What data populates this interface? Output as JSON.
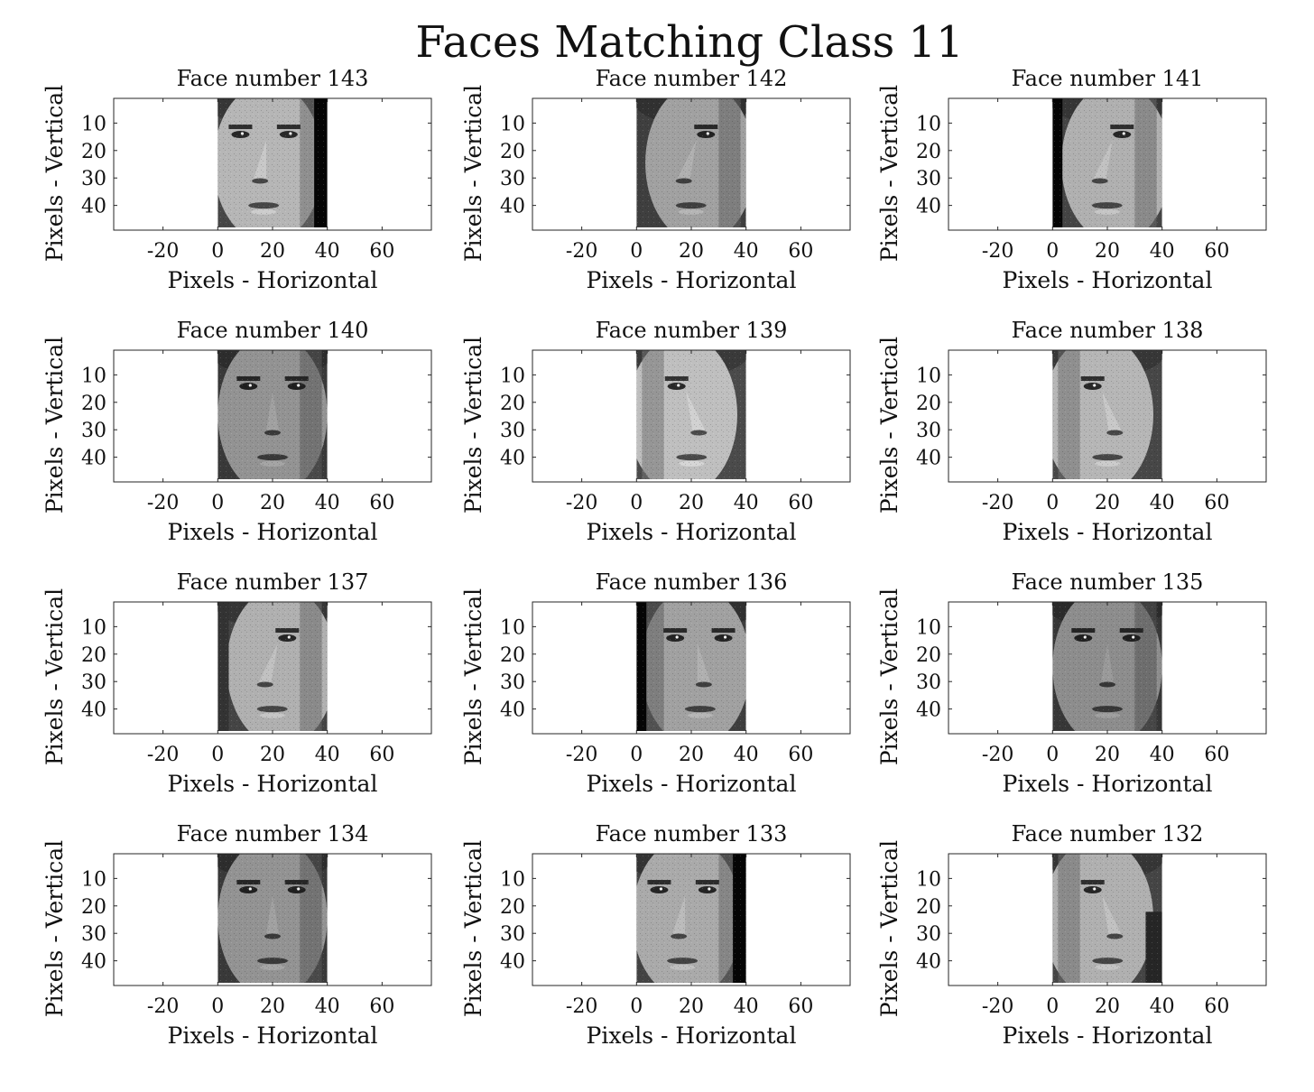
{
  "figure": {
    "title": "Faces Matching Class 11"
  },
  "chart_data": [
    {
      "type": "image",
      "title": "Face number 143",
      "xlabel": "Pixels - Horizontal",
      "ylabel": "Pixels - Vertical",
      "xlim": [
        -38,
        78
      ],
      "ylim": [
        49,
        1
      ],
      "xticks": [
        -20,
        0,
        20,
        40,
        60
      ],
      "yticks": [
        10,
        20,
        30,
        40
      ],
      "image_extent": [
        0,
        40,
        0,
        48
      ],
      "pose": "turned-left",
      "dark_band": "right",
      "face_tone": 0.62
    },
    {
      "type": "image",
      "title": "Face number 142",
      "xlabel": "Pixels - Horizontal",
      "ylabel": "Pixels - Vertical",
      "xlim": [
        -38,
        78
      ],
      "ylim": [
        49,
        1
      ],
      "xticks": [
        -20,
        0,
        20,
        40,
        60
      ],
      "yticks": [
        10,
        20,
        30,
        40
      ],
      "image_extent": [
        0,
        40,
        0,
        48
      ],
      "pose": "profile-left",
      "dark_band": "none",
      "face_tone": 0.55
    },
    {
      "type": "image",
      "title": "Face number 141",
      "xlabel": "Pixels - Horizontal",
      "ylabel": "Pixels - Vertical",
      "xlim": [
        -38,
        78
      ],
      "ylim": [
        49,
        1
      ],
      "xticks": [
        -20,
        0,
        20,
        40,
        60
      ],
      "yticks": [
        10,
        20,
        30,
        40
      ],
      "image_extent": [
        0,
        40,
        0,
        48
      ],
      "pose": "profile-left",
      "dark_band": "left",
      "face_tone": 0.6
    },
    {
      "type": "image",
      "title": "Face number 140",
      "xlabel": "Pixels - Horizontal",
      "ylabel": "Pixels - Vertical",
      "xlim": [
        -38,
        78
      ],
      "ylim": [
        49,
        1
      ],
      "xticks": [
        -20,
        0,
        20,
        40,
        60
      ],
      "yticks": [
        10,
        20,
        30,
        40
      ],
      "image_extent": [
        0,
        40,
        0,
        48
      ],
      "pose": "frontal",
      "dark_band": "none",
      "face_tone": 0.5
    },
    {
      "type": "image",
      "title": "Face number 139",
      "xlabel": "Pixels - Horizontal",
      "ylabel": "Pixels - Vertical",
      "xlim": [
        -38,
        78
      ],
      "ylim": [
        49,
        1
      ],
      "xticks": [
        -20,
        0,
        20,
        40,
        60
      ],
      "yticks": [
        10,
        20,
        30,
        40
      ],
      "image_extent": [
        0,
        40,
        0,
        48
      ],
      "pose": "profile-right",
      "dark_band": "none",
      "face_tone": 0.65
    },
    {
      "type": "image",
      "title": "Face number 138",
      "xlabel": "Pixels - Horizontal",
      "ylabel": "Pixels - Vertical",
      "xlim": [
        -38,
        78
      ],
      "ylim": [
        49,
        1
      ],
      "xticks": [
        -20,
        0,
        20,
        40,
        60
      ],
      "yticks": [
        10,
        20,
        30,
        40
      ],
      "image_extent": [
        0,
        40,
        0,
        48
      ],
      "pose": "profile-right",
      "dark_band": "none",
      "face_tone": 0.62
    },
    {
      "type": "image",
      "title": "Face number 137",
      "xlabel": "Pixels - Horizontal",
      "ylabel": "Pixels - Vertical",
      "xlim": [
        -38,
        78
      ],
      "ylim": [
        49,
        1
      ],
      "xticks": [
        -20,
        0,
        20,
        40,
        60
      ],
      "yticks": [
        10,
        20,
        30,
        40
      ],
      "image_extent": [
        0,
        40,
        0,
        48
      ],
      "pose": "profile-left",
      "dark_band": "left-soft",
      "face_tone": 0.6
    },
    {
      "type": "image",
      "title": "Face number 136",
      "xlabel": "Pixels - Horizontal",
      "ylabel": "Pixels - Vertical",
      "xlim": [
        -38,
        78
      ],
      "ylim": [
        49,
        1
      ],
      "xticks": [
        -20,
        0,
        20,
        40,
        60
      ],
      "yticks": [
        10,
        20,
        30,
        40
      ],
      "image_extent": [
        0,
        40,
        0,
        48
      ],
      "pose": "turned-right",
      "dark_band": "left",
      "face_tone": 0.55
    },
    {
      "type": "image",
      "title": "Face number 135",
      "xlabel": "Pixels - Horizontal",
      "ylabel": "Pixels - Vertical",
      "xlim": [
        -38,
        78
      ],
      "ylim": [
        49,
        1
      ],
      "xticks": [
        -20,
        0,
        20,
        40,
        60
      ],
      "yticks": [
        10,
        20,
        30,
        40
      ],
      "image_extent": [
        0,
        40,
        0,
        48
      ],
      "pose": "frontal",
      "dark_band": "none",
      "face_tone": 0.48
    },
    {
      "type": "image",
      "title": "Face number 134",
      "xlabel": "Pixels - Horizontal",
      "ylabel": "Pixels - Vertical",
      "xlim": [
        -38,
        78
      ],
      "ylim": [
        49,
        1
      ],
      "xticks": [
        -20,
        0,
        20,
        40,
        60
      ],
      "yticks": [
        10,
        20,
        30,
        40
      ],
      "image_extent": [
        0,
        40,
        0,
        48
      ],
      "pose": "frontal",
      "dark_band": "none",
      "face_tone": 0.5
    },
    {
      "type": "image",
      "title": "Face number 133",
      "xlabel": "Pixels - Horizontal",
      "ylabel": "Pixels - Vertical",
      "xlim": [
        -38,
        78
      ],
      "ylim": [
        49,
        1
      ],
      "xticks": [
        -20,
        0,
        20,
        40,
        60
      ],
      "yticks": [
        10,
        20,
        30,
        40
      ],
      "image_extent": [
        0,
        40,
        0,
        48
      ],
      "pose": "turned-left",
      "dark_band": "right",
      "face_tone": 0.58
    },
    {
      "type": "image",
      "title": "Face number 132",
      "xlabel": "Pixels - Horizontal",
      "ylabel": "Pixels - Vertical",
      "xlim": [
        -38,
        78
      ],
      "ylim": [
        49,
        1
      ],
      "xticks": [
        -20,
        0,
        20,
        40,
        60
      ],
      "yticks": [
        10,
        20,
        30,
        40
      ],
      "image_extent": [
        0,
        40,
        0,
        48
      ],
      "pose": "profile-right",
      "dark_band": "right-soft",
      "face_tone": 0.6
    }
  ]
}
